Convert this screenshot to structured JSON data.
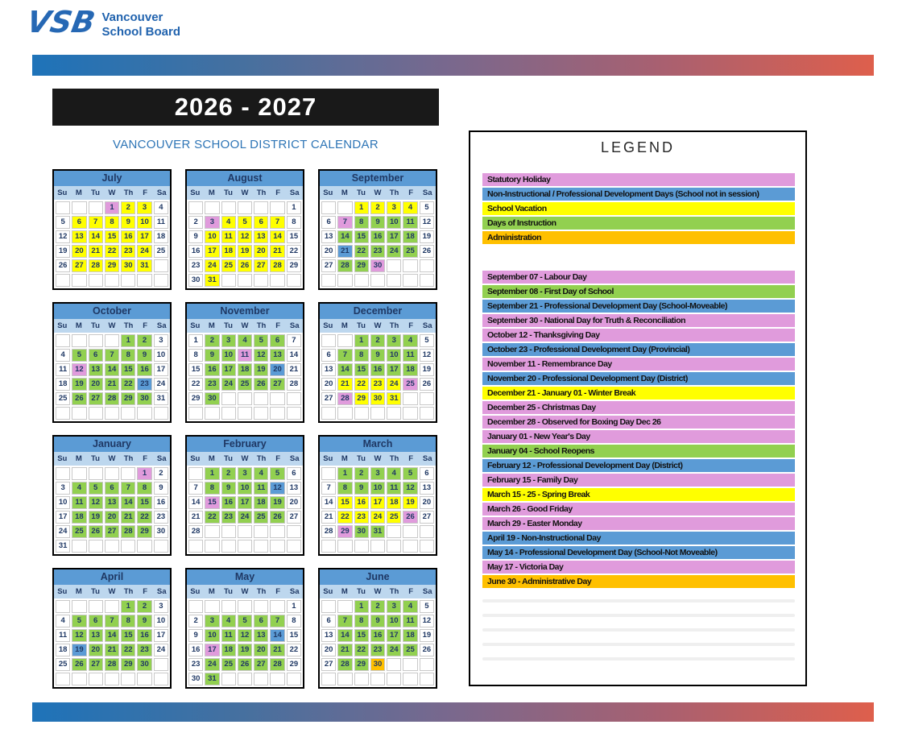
{
  "brand": {
    "logo_text": "VSB",
    "name_line1": "Vancouver",
    "name_line2": "School Board"
  },
  "header": {
    "year_title": "2026 - 2027",
    "subtitle": "VANCOUVER SCHOOL DISTRICT CALENDAR"
  },
  "colors": {
    "statutory": "#E09BDC",
    "pd": "#5B9BD5",
    "vacation": "#FFFF00",
    "instruction": "#92D050",
    "admin": "#FFC000",
    "month_header": "#5B9BD5",
    "dow_header": "#BDD7EE",
    "navy_text": "#1F3864",
    "gradient_left": "#1E73B9",
    "gradient_right": "#DE5F4C"
  },
  "calendar": {
    "dow": [
      "Su",
      "M",
      "Tu",
      "W",
      "Th",
      "F",
      "Sa"
    ],
    "months": [
      {
        "name": "July",
        "weeks": [
          [
            "",
            "",
            "",
            "1:p",
            "2:y",
            "3:y",
            "4"
          ],
          [
            "5",
            "6:y",
            "7:y",
            "8:y",
            "9:y",
            "10:y",
            "11"
          ],
          [
            "12",
            "13:y",
            "14:y",
            "15:y",
            "16:y",
            "17:y",
            "18"
          ],
          [
            "19",
            "20:y",
            "21:y",
            "22:y",
            "23:y",
            "24:y",
            "25"
          ],
          [
            "26",
            "27:y",
            "28:y",
            "29:y",
            "30:y",
            "31:y",
            ""
          ],
          [
            "",
            "",
            "",
            "",
            "",
            "",
            ""
          ]
        ]
      },
      {
        "name": "August",
        "weeks": [
          [
            "",
            "",
            "",
            "",
            "",
            "",
            "1"
          ],
          [
            "2",
            "3:p",
            "4:y",
            "5:y",
            "6:y",
            "7:y",
            "8"
          ],
          [
            "9",
            "10:y",
            "11:y",
            "12:y",
            "13:y",
            "14:y",
            "15"
          ],
          [
            "16",
            "17:y",
            "18:y",
            "19:y",
            "20:y",
            "21:y",
            "22"
          ],
          [
            "23",
            "24:y",
            "25:y",
            "26:y",
            "27:y",
            "28:y",
            "29"
          ],
          [
            "30",
            "31:y",
            "",
            "",
            "",
            "",
            ""
          ]
        ]
      },
      {
        "name": "September",
        "weeks": [
          [
            "",
            "",
            "1:y",
            "2:y",
            "3:y",
            "4:y",
            "5"
          ],
          [
            "6",
            "7:p",
            "8:g",
            "9:g",
            "10:g",
            "11:g",
            "12"
          ],
          [
            "13",
            "14:g",
            "15:g",
            "16:g",
            "17:g",
            "18:g",
            "19"
          ],
          [
            "20",
            "21:b",
            "22:g",
            "23:g",
            "24:g",
            "25:g",
            "26"
          ],
          [
            "27",
            "28:g",
            "29:g",
            "30:p",
            "",
            "",
            ""
          ],
          [
            "",
            "",
            "",
            "",
            "",
            "",
            ""
          ]
        ]
      },
      {
        "name": "October",
        "weeks": [
          [
            "",
            "",
            "",
            "",
            "1:g",
            "2:g",
            "3"
          ],
          [
            "4",
            "5:g",
            "6:g",
            "7:g",
            "8:g",
            "9:g",
            "10"
          ],
          [
            "11",
            "12:p",
            "13:g",
            "14:g",
            "15:g",
            "16:g",
            "17"
          ],
          [
            "18",
            "19:g",
            "20:g",
            "21:g",
            "22:g",
            "23:b",
            "24"
          ],
          [
            "25",
            "26:g",
            "27:g",
            "28:g",
            "29:g",
            "30:g",
            "31"
          ],
          [
            "",
            "",
            "",
            "",
            "",
            "",
            ""
          ]
        ]
      },
      {
        "name": "November",
        "weeks": [
          [
            "1",
            "2:g",
            "3:g",
            "4:g",
            "5:g",
            "6:g",
            "7"
          ],
          [
            "8",
            "9:g",
            "10:g",
            "11:p",
            "12:g",
            "13:g",
            "14"
          ],
          [
            "15",
            "16:g",
            "17:g",
            "18:g",
            "19:g",
            "20:b",
            "21"
          ],
          [
            "22",
            "23:g",
            "24:g",
            "25:g",
            "26:g",
            "27:g",
            "28"
          ],
          [
            "29",
            "30:g",
            "",
            "",
            "",
            "",
            ""
          ],
          [
            "",
            "",
            "",
            "",
            "",
            "",
            ""
          ]
        ]
      },
      {
        "name": "December",
        "weeks": [
          [
            "",
            "",
            "1:g",
            "2:g",
            "3:g",
            "4:g",
            "5"
          ],
          [
            "6",
            "7:g",
            "8:g",
            "9:g",
            "10:g",
            "11:g",
            "12"
          ],
          [
            "13",
            "14:g",
            "15:g",
            "16:g",
            "17:g",
            "18:g",
            "19"
          ],
          [
            "20",
            "21:y",
            "22:y",
            "23:y",
            "24:y",
            "25:p",
            "26"
          ],
          [
            "27",
            "28:p",
            "29:y",
            "30:y",
            "31:y",
            "",
            ""
          ],
          [
            "",
            "",
            "",
            "",
            "",
            "",
            ""
          ]
        ]
      },
      {
        "name": "January",
        "weeks": [
          [
            "",
            "",
            "",
            "",
            "",
            "1:p",
            "2"
          ],
          [
            "3",
            "4:g",
            "5:g",
            "6:g",
            "7:g",
            "8:g",
            "9"
          ],
          [
            "10",
            "11:g",
            "12:g",
            "13:g",
            "14:g",
            "15:g",
            "16"
          ],
          [
            "17",
            "18:g",
            "19:g",
            "20:g",
            "21:g",
            "22:g",
            "23"
          ],
          [
            "24",
            "25:g",
            "26:g",
            "27:g",
            "28:g",
            "29:g",
            "30"
          ],
          [
            "31",
            "",
            "",
            "",
            "",
            "",
            ""
          ]
        ]
      },
      {
        "name": "February",
        "weeks": [
          [
            "",
            "1:g",
            "2:g",
            "3:g",
            "4:g",
            "5:g",
            "6"
          ],
          [
            "7",
            "8:g",
            "9:g",
            "10:g",
            "11:g",
            "12:b",
            "13"
          ],
          [
            "14",
            "15:p",
            "16:g",
            "17:g",
            "18:g",
            "19:g",
            "20"
          ],
          [
            "21",
            "22:g",
            "23:g",
            "24:g",
            "25:g",
            "26:g",
            "27"
          ],
          [
            "28",
            "",
            "",
            "",
            "",
            "",
            ""
          ],
          [
            "",
            "",
            "",
            "",
            "",
            "",
            ""
          ]
        ]
      },
      {
        "name": "March",
        "weeks": [
          [
            "",
            "1:g",
            "2:g",
            "3:g",
            "4:g",
            "5:g",
            "6"
          ],
          [
            "7",
            "8:g",
            "9:g",
            "10:g",
            "11:g",
            "12:g",
            "13"
          ],
          [
            "14",
            "15:y",
            "16:y",
            "17:y",
            "18:y",
            "19:y",
            "20"
          ],
          [
            "21",
            "22:y",
            "23:y",
            "24:y",
            "25:y",
            "26:p",
            "27"
          ],
          [
            "28",
            "29:p",
            "30:g",
            "31:g",
            "",
            "",
            ""
          ],
          [
            "",
            "",
            "",
            "",
            "",
            "",
            ""
          ]
        ]
      },
      {
        "name": "April",
        "weeks": [
          [
            "",
            "",
            "",
            "",
            "1:g",
            "2:g",
            "3"
          ],
          [
            "4",
            "5:g",
            "6:g",
            "7:g",
            "8:g",
            "9:g",
            "10"
          ],
          [
            "11",
            "12:g",
            "13:g",
            "14:g",
            "15:g",
            "16:g",
            "17"
          ],
          [
            "18",
            "19:b",
            "20:g",
            "21:g",
            "22:g",
            "23:g",
            "24"
          ],
          [
            "25",
            "26:g",
            "27:g",
            "28:g",
            "29:g",
            "30:g",
            ""
          ],
          [
            "",
            "",
            "",
            "",
            "",
            "",
            ""
          ]
        ]
      },
      {
        "name": "May",
        "weeks": [
          [
            "",
            "",
            "",
            "",
            "",
            "",
            "1"
          ],
          [
            "2",
            "3:g",
            "4:g",
            "5:g",
            "6:g",
            "7:g",
            "8"
          ],
          [
            "9",
            "10:g",
            "11:g",
            "12:g",
            "13:g",
            "14:b",
            "15"
          ],
          [
            "16",
            "17:p",
            "18:g",
            "19:g",
            "20:g",
            "21:g",
            "22"
          ],
          [
            "23",
            "24:g",
            "25:g",
            "26:g",
            "27:g",
            "28:g",
            "29"
          ],
          [
            "30",
            "31:g",
            "",
            "",
            "",
            "",
            ""
          ]
        ]
      },
      {
        "name": "June",
        "weeks": [
          [
            "",
            "",
            "1:g",
            "2:g",
            "3:g",
            "4:g",
            "5"
          ],
          [
            "6",
            "7:g",
            "8:g",
            "9:g",
            "10:g",
            "11:g",
            "12"
          ],
          [
            "13",
            "14:g",
            "15:g",
            "16:g",
            "17:g",
            "18:g",
            "19"
          ],
          [
            "20",
            "21:g",
            "22:g",
            "23:g",
            "24:g",
            "25:g",
            "26"
          ],
          [
            "27",
            "28:g",
            "29:g",
            "30:o",
            "",
            "",
            ""
          ],
          [
            "",
            "",
            "",
            "",
            "",
            "",
            ""
          ]
        ]
      }
    ]
  },
  "legend": {
    "title": "LEGEND",
    "categories": [
      {
        "label": "Statutory Holiday",
        "color": "p"
      },
      {
        "label": "Non-Instructional / Professional Development Days (School not in session)",
        "color": "b"
      },
      {
        "label": "School Vacation",
        "color": "y"
      },
      {
        "label": "Days of Instruction",
        "color": "g"
      },
      {
        "label": "Administration",
        "color": "o"
      }
    ],
    "events": [
      {
        "label": "September 07 - Labour Day",
        "color": "p"
      },
      {
        "label": "September 08 - First Day of School",
        "color": "g"
      },
      {
        "label": "September 21 - Professional Development Day (School-Moveable)",
        "color": "b"
      },
      {
        "label": "September 30 - National Day for Truth & Reconciliation",
        "color": "p"
      },
      {
        "label": "October 12 - Thanksgiving Day",
        "color": "p"
      },
      {
        "label": "October 23 - Professional Development Day (Provincial)",
        "color": "b"
      },
      {
        "label": "November 11 - Remembrance Day",
        "color": "p"
      },
      {
        "label": "November 20 - Professional Development Day (District)",
        "color": "b"
      },
      {
        "label": "December 21 - January 01 - Winter Break",
        "color": "y"
      },
      {
        "label": "December 25 - Christmas Day",
        "color": "p"
      },
      {
        "label": "December 28 - Observed for Boxing Day Dec 26",
        "color": "p"
      },
      {
        "label": "January 01 - New Year's Day",
        "color": "p"
      },
      {
        "label": "January 04 - School Reopens",
        "color": "g"
      },
      {
        "label": "February 12 - Professional Development Day (District)",
        "color": "b"
      },
      {
        "label": "February 15 - Family Day",
        "color": "p"
      },
      {
        "label": "March 15 - 25 - Spring Break",
        "color": "y"
      },
      {
        "label": "March 26 - Good Friday",
        "color": "p"
      },
      {
        "label": "March 29 - Easter Monday",
        "color": "p"
      },
      {
        "label": "April 19 - Non-Instructional Day",
        "color": "b"
      },
      {
        "label": "May 14 - Professional Development Day (School-Not Moveable)",
        "color": "b"
      },
      {
        "label": "May 17 - Victoria Day",
        "color": "p"
      },
      {
        "label": "June 30 - Administrative Day",
        "color": "o"
      }
    ],
    "empty_rows": 5
  }
}
